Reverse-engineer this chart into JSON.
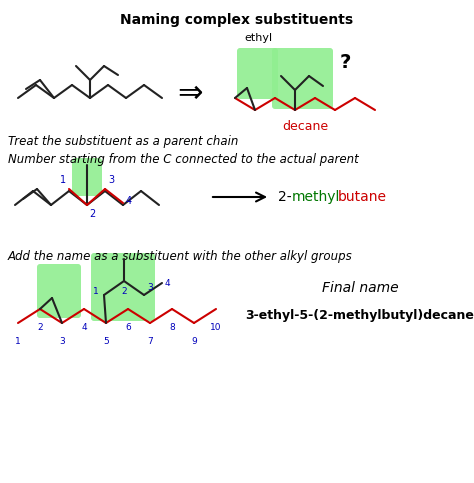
{
  "title": "Naming complex substituents",
  "text1": "Treat the substituent as a parent chain",
  "text2": "Number starting from the C connected to the actual parent",
  "text3": "Add the name as a substituent with the other alkyl groups",
  "label_ethyl": "ethyl",
  "label_decane": "decane",
  "label_final_name": "Final name",
  "label_final": "3-ethyl-5-(2-methylbutyl)decane",
  "label_question": "?",
  "bg_color": "#ffffff",
  "green_highlight": "#90EE90",
  "black": "#000000",
  "red": "#cc0000",
  "blue": "#0000bb",
  "green_text": "#007700",
  "dark_gray": "#222222",
  "gray": "#444444"
}
